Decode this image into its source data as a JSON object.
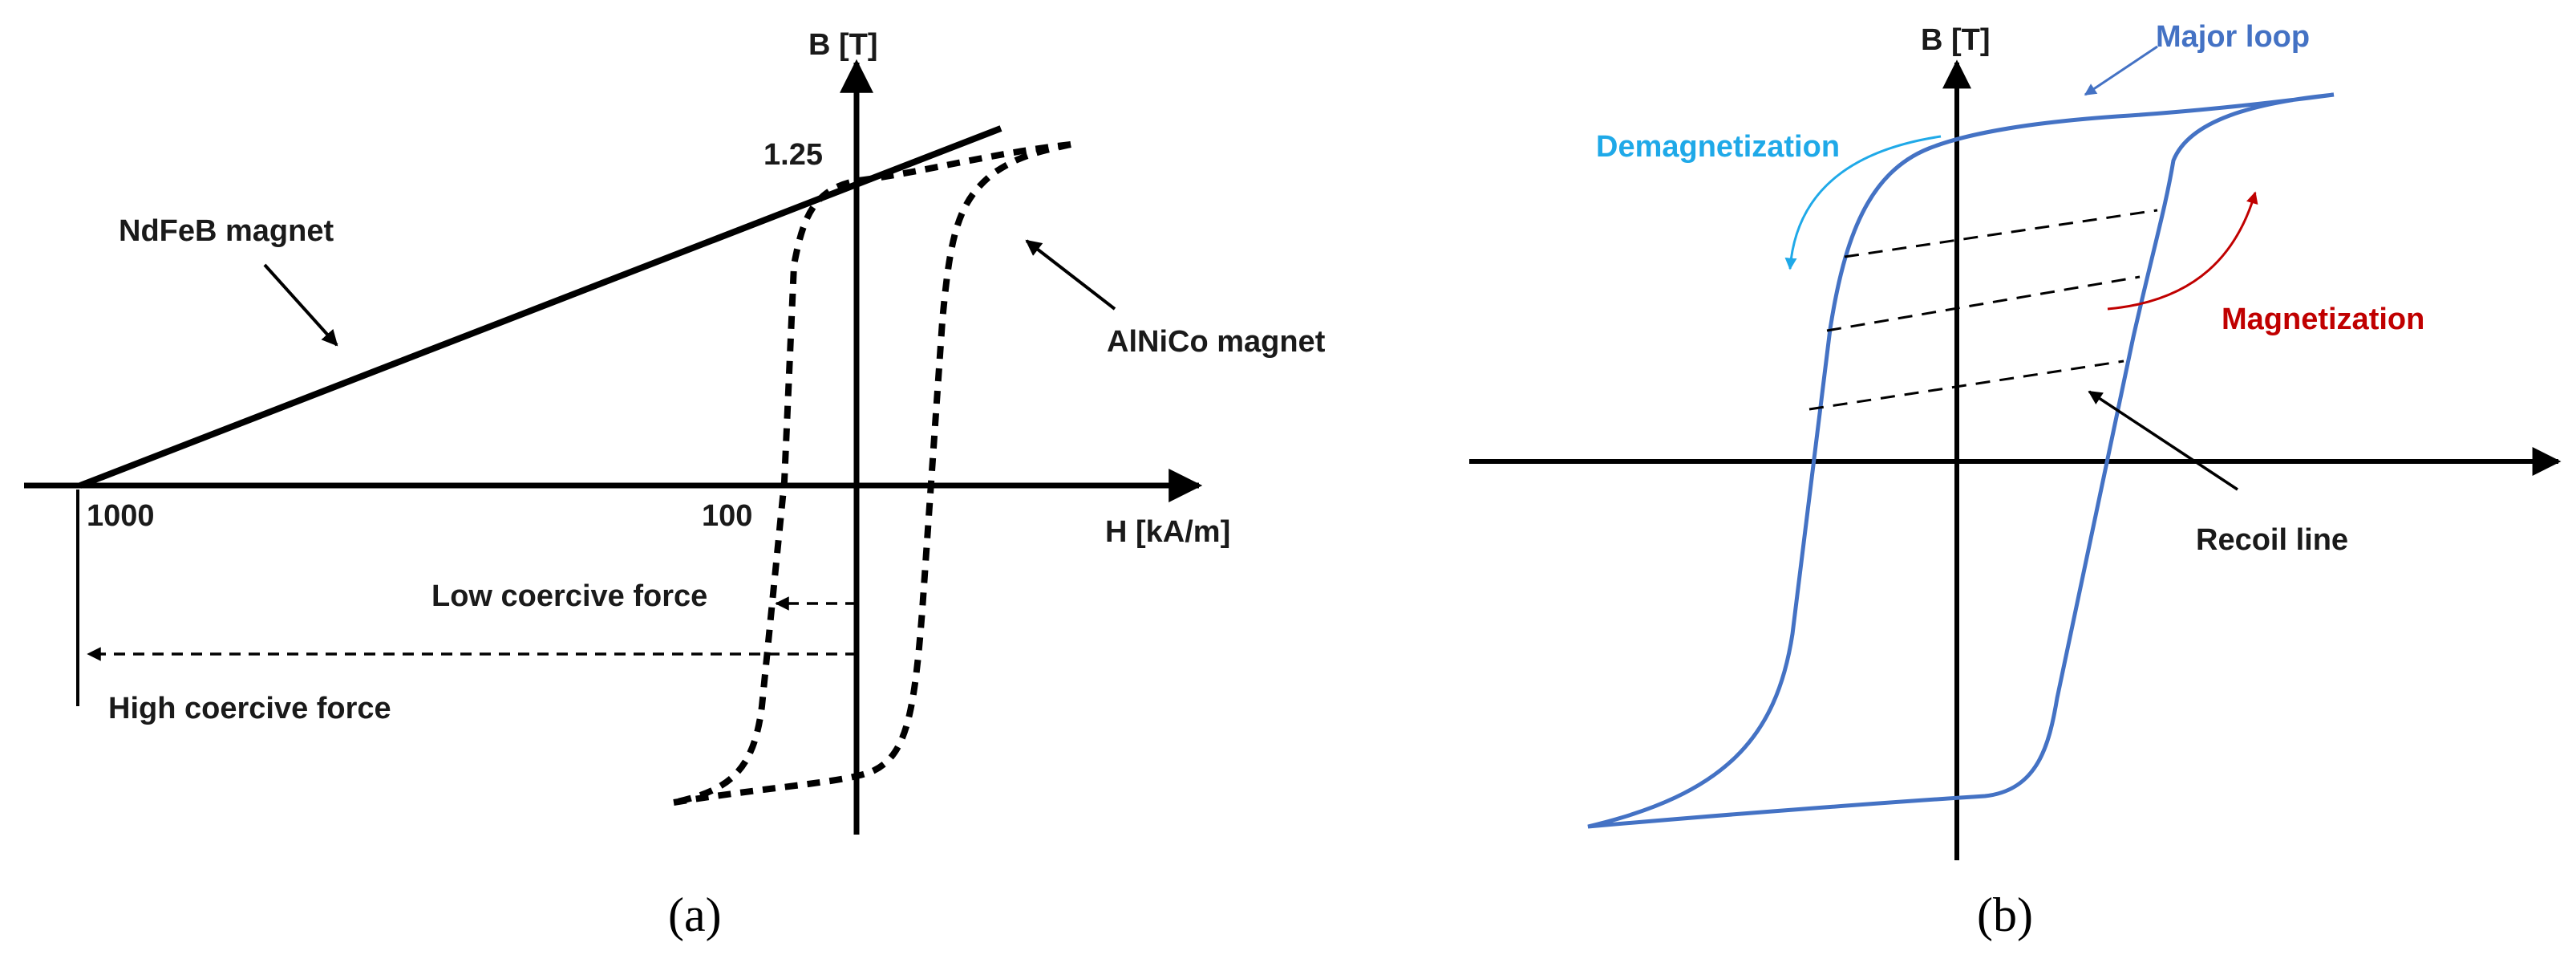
{
  "panel_a": {
    "y_axis_label": "B [T]",
    "x_axis_label": "H [kA/m]",
    "b_value": "1.25",
    "h_tick_high": "1000",
    "h_tick_low": "100",
    "ndfeb_label": "NdFeB magnet",
    "alnico_label": "AlNiCo magnet",
    "low_coercive_label": "Low coercive force",
    "high_coercive_label": "High coercive force",
    "caption": "(a)"
  },
  "panel_b": {
    "y_axis_label": "B [T]",
    "major_loop_label": "Major loop",
    "demagnetization_label": "Demagnetization",
    "magnetization_label": "Magnetization",
    "recoil_line_label": "Recoil line",
    "caption": "(b)"
  },
  "colors": {
    "axes": "#000000",
    "major_loop": "#4472C4",
    "demagnetization": "#1FA9E8",
    "magnetization": "#C00000",
    "text": "#1a1a1a"
  }
}
